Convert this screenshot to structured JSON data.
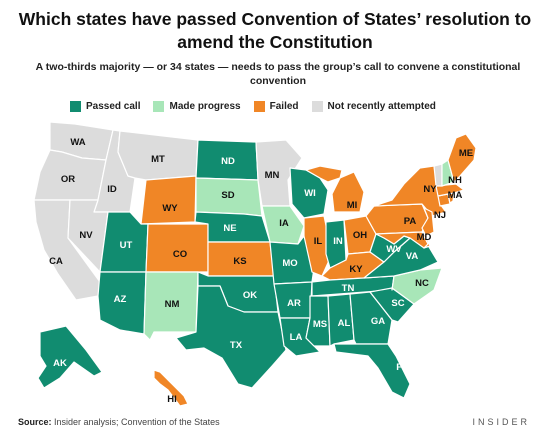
{
  "title": "Which states have passed Convention of States’ resolution to amend the Constitution",
  "subtitle": "A two-thirds majority — or 34 states — needs to pass the group’s call to convene a constitutional convention",
  "legend": [
    {
      "label": "Passed call",
      "color": "#118c70"
    },
    {
      "label": "Made progress",
      "color": "#a8e6b8"
    },
    {
      "label": "Failed",
      "color": "#f08626"
    },
    {
      "label": "Not recently attempted",
      "color": "#dcdcdc"
    }
  ],
  "states": {
    "WA": {
      "label": "WA",
      "status": "Not recently attempted"
    },
    "OR": {
      "label": "OR",
      "status": "Not recently attempted"
    },
    "CA": {
      "label": "CA",
      "status": "Not recently attempted"
    },
    "ID": {
      "label": "ID",
      "status": "Not recently attempted"
    },
    "NV": {
      "label": "NV",
      "status": "Not recently attempted"
    },
    "MT": {
      "label": "MT",
      "status": "Not recently attempted"
    },
    "WY": {
      "label": "WY",
      "status": "Failed"
    },
    "UT": {
      "label": "UT",
      "status": "Passed call"
    },
    "AZ": {
      "label": "AZ",
      "status": "Passed call"
    },
    "CO": {
      "label": "CO",
      "status": "Failed"
    },
    "NM": {
      "label": "NM",
      "status": "Made progress"
    },
    "ND": {
      "label": "ND",
      "status": "Passed call"
    },
    "SD": {
      "label": "SD",
      "status": "Made progress"
    },
    "NE": {
      "label": "NE",
      "status": "Passed call"
    },
    "KS": {
      "label": "KS",
      "status": "Failed"
    },
    "OK": {
      "label": "OK",
      "status": "Passed call"
    },
    "TX": {
      "label": "TX",
      "status": "Passed call"
    },
    "MN": {
      "label": "MN",
      "status": "Not recently attempted"
    },
    "IA": {
      "label": "IA",
      "status": "Made progress"
    },
    "MO": {
      "label": "MO",
      "status": "Passed call"
    },
    "AR": {
      "label": "AR",
      "status": "Passed call"
    },
    "LA": {
      "label": "LA",
      "status": "Passed call"
    },
    "WI": {
      "label": "WI",
      "status": "Passed call"
    },
    "IL": {
      "label": "IL",
      "status": "Failed"
    },
    "MI": {
      "label": "MI",
      "status": "Failed"
    },
    "IN": {
      "label": "IN",
      "status": "Passed call"
    },
    "OH": {
      "label": "OH",
      "status": "Failed"
    },
    "KY": {
      "label": "KY",
      "status": "Failed"
    },
    "TN": {
      "label": "TN",
      "status": "Passed call"
    },
    "MS": {
      "label": "MS",
      "status": "Passed call"
    },
    "AL": {
      "label": "AL",
      "status": "Passed call"
    },
    "GA": {
      "label": "GA",
      "status": "Passed call"
    },
    "FL": {
      "label": "FL",
      "status": "Passed call"
    },
    "SC": {
      "label": "SC",
      "status": "Passed call"
    },
    "NC": {
      "label": "NC",
      "status": "Made progress"
    },
    "VA": {
      "label": "VA",
      "status": "Passed call"
    },
    "WV": {
      "label": "WV",
      "status": "Passed call"
    },
    "PA": {
      "label": "PA",
      "status": "Failed"
    },
    "NY": {
      "label": "NY",
      "status": "Failed"
    },
    "NJ": {
      "label": "NJ",
      "status": "Failed"
    },
    "MD": {
      "label": "MD",
      "status": "Failed"
    },
    "DE": {
      "label": "",
      "status": "Failed"
    },
    "CT": {
      "label": "",
      "status": "Failed"
    },
    "RI": {
      "label": "",
      "status": "Failed"
    },
    "MA": {
      "label": "MA",
      "status": "Failed"
    },
    "VT": {
      "label": "",
      "status": "Not recently attempted"
    },
    "NH": {
      "label": "NH",
      "status": "Made progress"
    },
    "ME": {
      "label": "ME",
      "status": "Failed"
    },
    "AK": {
      "label": "AK",
      "status": "Passed call"
    },
    "HI": {
      "label": "HI",
      "status": "Failed"
    }
  },
  "source": {
    "label": "Source:",
    "text": "Insider analysis; Convention of the States"
  },
  "brand": "INSIDER"
}
